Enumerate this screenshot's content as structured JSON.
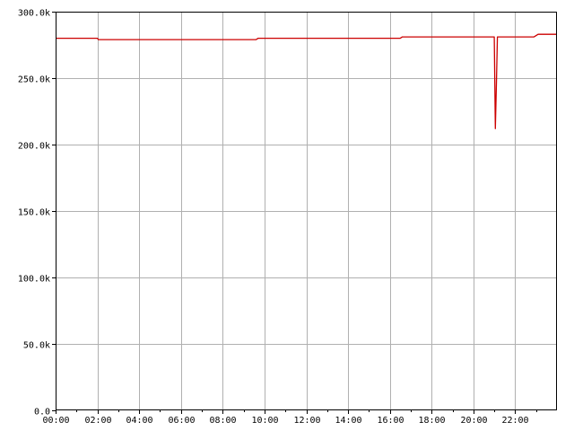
{
  "chart_data": {
    "type": "line",
    "title": "",
    "xlabel": "",
    "ylabel": "",
    "xlim": [
      0,
      24
    ],
    "ylim": [
      0,
      300000
    ],
    "grid": true,
    "x_tick_labels": [
      "00:00",
      "02:00",
      "04:00",
      "06:00",
      "08:00",
      "10:00",
      "12:00",
      "14:00",
      "16:00",
      "18:00",
      "20:00",
      "22:00"
    ],
    "x_tick_values": [
      0,
      2,
      4,
      6,
      8,
      10,
      12,
      14,
      16,
      18,
      20,
      22
    ],
    "y_tick_labels": [
      "0.0",
      "50.0k",
      "100.0k",
      "150.0k",
      "200.0k",
      "250.0k",
      "300.0k"
    ],
    "y_tick_values": [
      0,
      50000,
      100000,
      150000,
      200000,
      250000,
      300000
    ],
    "series": [
      {
        "color": "#cc0000",
        "x": [
          0,
          2.0,
          2.05,
          2.1,
          4,
          6,
          8,
          9.6,
          9.7,
          12,
          14,
          16.5,
          16.6,
          18,
          20,
          21.0,
          21.05,
          21.1,
          21.15,
          21.2,
          22,
          22.9,
          23.1,
          24
        ],
        "y": [
          280000,
          280000,
          279000,
          279000,
          279000,
          279000,
          279000,
          279000,
          280000,
          280000,
          280000,
          280000,
          281000,
          281000,
          281000,
          281000,
          212000,
          246000,
          281000,
          281000,
          281000,
          281000,
          283000,
          283000
        ]
      }
    ]
  }
}
